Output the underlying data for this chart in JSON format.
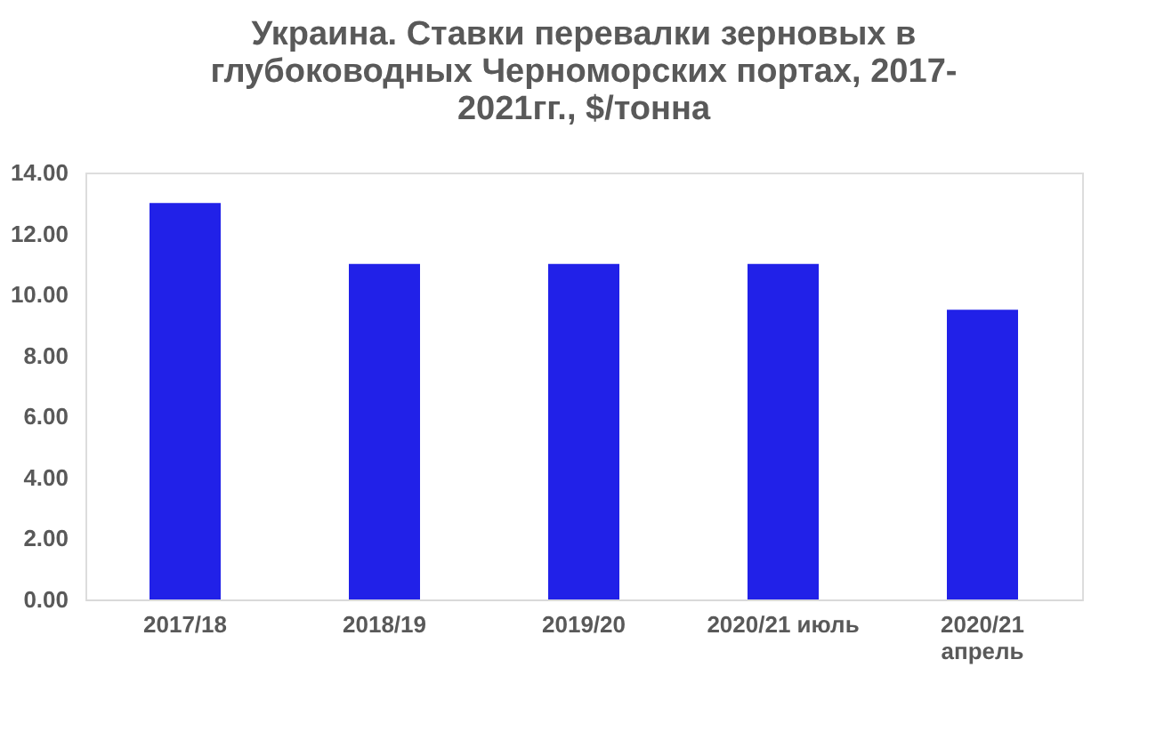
{
  "chart_data": {
    "type": "bar",
    "title": "Украина. Ставки перевалки зерновых в\nглубоководных Черноморских портах, 2017-\n2021гг., $/тонна",
    "categories": [
      "2017/18",
      "2018/19",
      "2019/20",
      "2020/21 июль",
      "2020/21\nапрель"
    ],
    "values": [
      13,
      11,
      11,
      11,
      9.5
    ],
    "color": "#2121e8",
    "ylim": [
      0,
      14
    ],
    "yticks": [
      {
        "value": 0,
        "label": "0.00"
      },
      {
        "value": 2,
        "label": "2.00"
      },
      {
        "value": 4,
        "label": "4.00"
      },
      {
        "value": 6,
        "label": "6.00"
      },
      {
        "value": 8,
        "label": "8.00"
      },
      {
        "value": 10,
        "label": "10.00"
      },
      {
        "value": 12,
        "label": "12.00"
      },
      {
        "value": 14,
        "label": "14.00"
      }
    ],
    "grid": false
  }
}
